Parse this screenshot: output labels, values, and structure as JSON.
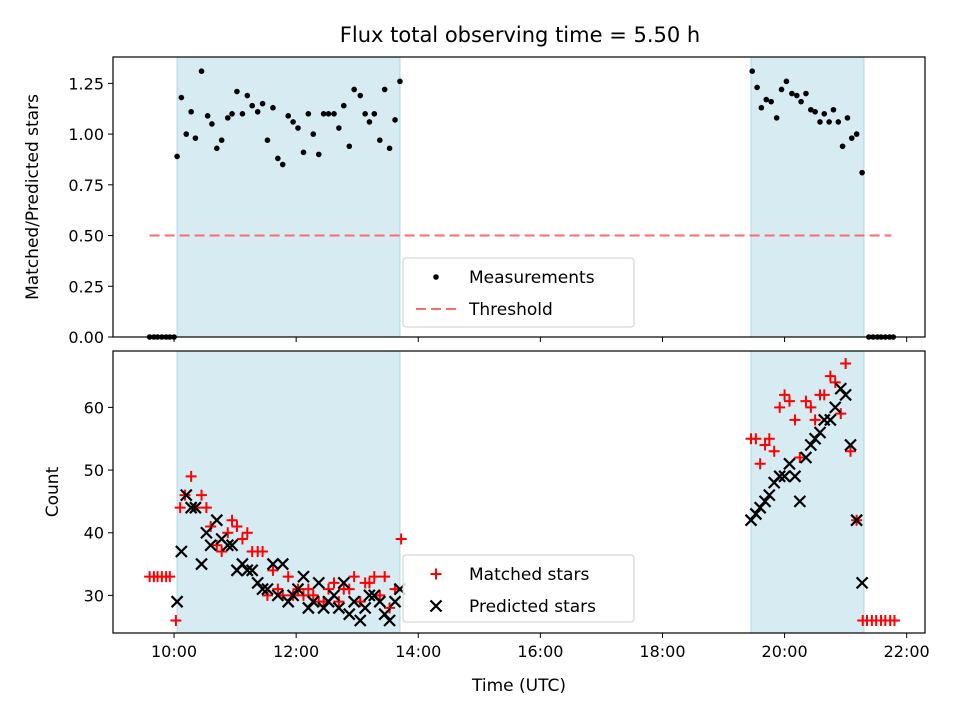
{
  "title": "Flux total observing time = 5.50 h",
  "colors": {
    "shade": "#add8e6",
    "measure": "#000000",
    "threshold": "#ff6b6b",
    "matched": "#ff0000",
    "predicted": "#000000"
  },
  "chart_data": [
    {
      "type": "scatter",
      "ylabel": "Matched/Predicted stars",
      "ylim": [
        0,
        1.38
      ],
      "yticks": [
        0.0,
        0.25,
        0.5,
        0.75,
        1.0,
        1.25
      ],
      "ytick_labels": [
        "0.00",
        "0.25",
        "0.50",
        "0.75",
        "1.00",
        "1.25"
      ],
      "xlim": [
        9.0,
        22.3
      ],
      "xticks": [
        10,
        12,
        14,
        16,
        18,
        20,
        22
      ],
      "shaded_intervals": [
        [
          10.05,
          13.7
        ],
        [
          19.45,
          21.3
        ]
      ],
      "legend": {
        "position": "lower-center",
        "entries": [
          "Measurements",
          "Threshold"
        ]
      },
      "threshold": {
        "name": "Threshold",
        "y": 0.5,
        "x_range": [
          9.6,
          21.75
        ]
      },
      "series": [
        {
          "name": "Measurements",
          "points": [
            [
              9.6,
              0.0
            ],
            [
              9.67,
              0.0
            ],
            [
              9.73,
              0.0
            ],
            [
              9.8,
              0.0
            ],
            [
              9.87,
              0.0
            ],
            [
              9.93,
              0.0
            ],
            [
              10.0,
              0.0
            ],
            [
              10.05,
              0.89
            ],
            [
              10.12,
              1.18
            ],
            [
              10.2,
              1.0
            ],
            [
              10.28,
              1.11
            ],
            [
              10.35,
              0.98
            ],
            [
              10.45,
              1.31
            ],
            [
              10.55,
              1.09
            ],
            [
              10.62,
              1.05
            ],
            [
              10.7,
              0.93
            ],
            [
              10.78,
              0.97
            ],
            [
              10.88,
              1.08
            ],
            [
              10.95,
              1.1
            ],
            [
              11.03,
              1.21
            ],
            [
              11.12,
              1.1
            ],
            [
              11.2,
              1.19
            ],
            [
              11.28,
              1.14
            ],
            [
              11.37,
              1.11
            ],
            [
              11.45,
              1.15
            ],
            [
              11.53,
              0.97
            ],
            [
              11.62,
              1.13
            ],
            [
              11.7,
              0.88
            ],
            [
              11.78,
              0.85
            ],
            [
              11.87,
              1.09
            ],
            [
              11.95,
              1.06
            ],
            [
              12.03,
              1.03
            ],
            [
              12.12,
              0.91
            ],
            [
              12.2,
              1.1
            ],
            [
              12.28,
              1.0
            ],
            [
              12.37,
              0.9
            ],
            [
              12.45,
              1.1
            ],
            [
              12.53,
              1.1
            ],
            [
              12.62,
              1.1
            ],
            [
              12.7,
              1.03
            ],
            [
              12.78,
              1.14
            ],
            [
              12.87,
              0.94
            ],
            [
              12.95,
              1.22
            ],
            [
              13.05,
              1.19
            ],
            [
              13.13,
              1.1
            ],
            [
              13.2,
              1.06
            ],
            [
              13.28,
              1.1
            ],
            [
              13.37,
              0.97
            ],
            [
              13.45,
              1.22
            ],
            [
              13.53,
              0.93
            ],
            [
              13.62,
              1.07
            ],
            [
              13.7,
              1.26
            ],
            [
              19.47,
              1.31
            ],
            [
              19.55,
              1.23
            ],
            [
              19.62,
              1.13
            ],
            [
              19.7,
              1.17
            ],
            [
              19.78,
              1.16
            ],
            [
              19.87,
              1.08
            ],
            [
              19.95,
              1.22
            ],
            [
              20.03,
              1.26
            ],
            [
              20.12,
              1.2
            ],
            [
              20.2,
              1.19
            ],
            [
              20.27,
              1.16
            ],
            [
              20.35,
              1.2
            ],
            [
              20.43,
              1.12
            ],
            [
              20.5,
              1.11
            ],
            [
              20.58,
              1.06
            ],
            [
              20.65,
              1.1
            ],
            [
              20.73,
              1.06
            ],
            [
              20.8,
              1.12
            ],
            [
              20.88,
              1.06
            ],
            [
              20.95,
              0.94
            ],
            [
              21.03,
              1.08
            ],
            [
              21.1,
              0.98
            ],
            [
              21.18,
              1.0
            ],
            [
              21.27,
              0.81
            ],
            [
              21.38,
              0.0
            ],
            [
              21.45,
              0.0
            ],
            [
              21.52,
              0.0
            ],
            [
              21.58,
              0.0
            ],
            [
              21.65,
              0.0
            ],
            [
              21.72,
              0.0
            ],
            [
              21.78,
              0.0
            ]
          ]
        }
      ]
    },
    {
      "type": "scatter",
      "xlabel": "Time (UTC)",
      "ylabel": "Count",
      "ylim": [
        24,
        69
      ],
      "yticks": [
        30,
        40,
        50,
        60
      ],
      "ytick_labels": [
        "30",
        "40",
        "50",
        "60"
      ],
      "xlim": [
        9.0,
        22.3
      ],
      "xticks": [
        10,
        12,
        14,
        16,
        18,
        20,
        22
      ],
      "xtick_labels": [
        "10:00",
        "12:00",
        "14:00",
        "16:00",
        "18:00",
        "20:00",
        "22:00"
      ],
      "shaded_intervals": [
        [
          10.05,
          13.7
        ],
        [
          19.45,
          21.3
        ]
      ],
      "legend": {
        "position": "lower-center",
        "entries": [
          "Matched stars",
          "Predicted stars"
        ]
      },
      "series": [
        {
          "name": "Matched stars",
          "marker": "plus",
          "points": [
            [
              9.6,
              33
            ],
            [
              9.67,
              33
            ],
            [
              9.73,
              33
            ],
            [
              9.8,
              33
            ],
            [
              9.87,
              33
            ],
            [
              9.93,
              33
            ],
            [
              10.03,
              26
            ],
            [
              10.1,
              44
            ],
            [
              10.18,
              46
            ],
            [
              10.28,
              49
            ],
            [
              10.35,
              44
            ],
            [
              10.45,
              46
            ],
            [
              10.53,
              44
            ],
            [
              10.6,
              41
            ],
            [
              10.7,
              38
            ],
            [
              10.78,
              37
            ],
            [
              10.88,
              40
            ],
            [
              10.95,
              42
            ],
            [
              11.03,
              41
            ],
            [
              11.12,
              39
            ],
            [
              11.2,
              40
            ],
            [
              11.28,
              37
            ],
            [
              11.37,
              37
            ],
            [
              11.45,
              37
            ],
            [
              11.53,
              30
            ],
            [
              11.62,
              34
            ],
            [
              11.7,
              31
            ],
            [
              11.78,
              30
            ],
            [
              11.87,
              33
            ],
            [
              11.95,
              30
            ],
            [
              12.03,
              31
            ],
            [
              12.12,
              30
            ],
            [
              12.2,
              31
            ],
            [
              12.28,
              30
            ],
            [
              12.37,
              29
            ],
            [
              12.45,
              29
            ],
            [
              12.53,
              31
            ],
            [
              12.62,
              32
            ],
            [
              12.7,
              29
            ],
            [
              12.78,
              31
            ],
            [
              12.87,
              31
            ],
            [
              12.95,
              33
            ],
            [
              13.05,
              29
            ],
            [
              13.13,
              32
            ],
            [
              13.2,
              32
            ],
            [
              13.28,
              33
            ],
            [
              13.37,
              30
            ],
            [
              13.45,
              33
            ],
            [
              13.53,
              28
            ],
            [
              13.62,
              31
            ],
            [
              13.72,
              39
            ],
            [
              19.45,
              55
            ],
            [
              19.53,
              55
            ],
            [
              19.6,
              51
            ],
            [
              19.68,
              54
            ],
            [
              19.75,
              55
            ],
            [
              19.83,
              53
            ],
            [
              19.92,
              60
            ],
            [
              20.0,
              62
            ],
            [
              20.08,
              61
            ],
            [
              20.17,
              58
            ],
            [
              20.25,
              52
            ],
            [
              20.35,
              61
            ],
            [
              20.43,
              60
            ],
            [
              20.5,
              58
            ],
            [
              20.58,
              62
            ],
            [
              20.65,
              62
            ],
            [
              20.75,
              65
            ],
            [
              20.83,
              64
            ],
            [
              20.92,
              59
            ],
            [
              21.0,
              67
            ],
            [
              21.08,
              53
            ],
            [
              21.18,
              42
            ],
            [
              21.28,
              26
            ],
            [
              21.35,
              26
            ],
            [
              21.43,
              26
            ],
            [
              21.5,
              26
            ],
            [
              21.58,
              26
            ],
            [
              21.65,
              26
            ],
            [
              21.73,
              26
            ],
            [
              21.8,
              26
            ]
          ]
        },
        {
          "name": "Predicted stars",
          "marker": "cross",
          "points": [
            [
              10.05,
              29
            ],
            [
              10.12,
              37
            ],
            [
              10.2,
              46
            ],
            [
              10.28,
              44
            ],
            [
              10.35,
              44
            ],
            [
              10.45,
              35
            ],
            [
              10.53,
              40
            ],
            [
              10.6,
              38
            ],
            [
              10.7,
              42
            ],
            [
              10.78,
              39
            ],
            [
              10.88,
              38
            ],
            [
              10.95,
              38
            ],
            [
              11.03,
              34
            ],
            [
              11.12,
              35
            ],
            [
              11.2,
              34
            ],
            [
              11.28,
              34
            ],
            [
              11.37,
              32
            ],
            [
              11.45,
              31
            ],
            [
              11.53,
              31
            ],
            [
              11.62,
              35
            ],
            [
              11.7,
              30
            ],
            [
              11.78,
              35
            ],
            [
              11.87,
              29
            ],
            [
              11.95,
              30
            ],
            [
              12.03,
              31
            ],
            [
              12.12,
              33
            ],
            [
              12.2,
              28
            ],
            [
              12.28,
              29
            ],
            [
              12.37,
              32
            ],
            [
              12.45,
              28
            ],
            [
              12.53,
              29
            ],
            [
              12.62,
              30
            ],
            [
              12.7,
              28
            ],
            [
              12.78,
              32
            ],
            [
              12.87,
              27
            ],
            [
              12.95,
              29
            ],
            [
              13.05,
              26
            ],
            [
              13.13,
              28
            ],
            [
              13.2,
              30
            ],
            [
              13.28,
              30
            ],
            [
              13.37,
              29
            ],
            [
              13.45,
              27
            ],
            [
              13.53,
              26
            ],
            [
              13.62,
              29
            ],
            [
              13.7,
              31
            ],
            [
              19.45,
              42
            ],
            [
              19.53,
              43
            ],
            [
              19.6,
              44
            ],
            [
              19.68,
              45
            ],
            [
              19.75,
              46
            ],
            [
              19.83,
              48
            ],
            [
              19.92,
              49
            ],
            [
              20.0,
              49
            ],
            [
              20.08,
              51
            ],
            [
              20.17,
              49
            ],
            [
              20.25,
              45
            ],
            [
              20.35,
              52
            ],
            [
              20.43,
              54
            ],
            [
              20.5,
              55
            ],
            [
              20.58,
              56
            ],
            [
              20.65,
              58
            ],
            [
              20.75,
              58
            ],
            [
              20.83,
              60
            ],
            [
              20.92,
              63
            ],
            [
              21.0,
              62
            ],
            [
              21.08,
              54
            ],
            [
              21.18,
              42
            ],
            [
              21.27,
              32
            ]
          ]
        }
      ]
    }
  ]
}
